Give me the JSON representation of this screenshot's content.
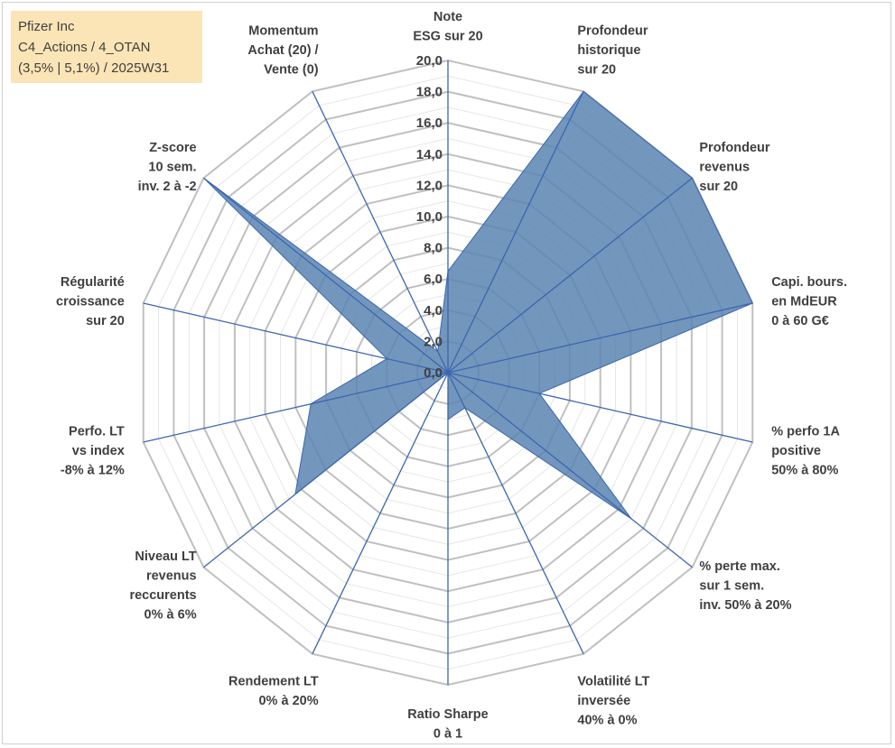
{
  "info": {
    "line1": "Pfizer Inc",
    "line2": "C4_Actions / 4_OTAN",
    "line3": "(3,5% | 5,1%) / 2025W31"
  },
  "chart_data": {
    "type": "radar",
    "title": "",
    "range": [
      0,
      20
    ],
    "tick_step": 2,
    "tick_labels": [
      "0,0",
      "2,0",
      "4,0",
      "6,0",
      "8,0",
      "10,0",
      "12,0",
      "14,0",
      "16,0",
      "18,0",
      "20,0"
    ],
    "colors": {
      "fill": "#5b84b1",
      "spoke": "#3b66b0",
      "grid": "#c0c0c0",
      "minor_grid": "#e6e6e6"
    },
    "axes": [
      {
        "label": [
          "Note",
          "ESG sur 20"
        ],
        "value": 6.5
      },
      {
        "label": [
          "Profondeur",
          "historique",
          "sur 20"
        ],
        "value": 20
      },
      {
        "label": [
          "Profondeur",
          "revenus",
          "sur 20"
        ],
        "value": 20
      },
      {
        "label": [
          "Capi. bours.",
          "en MdEUR",
          "0 à 60 G€"
        ],
        "value": 20
      },
      {
        "label": [
          "% perfo 1A",
          "positive",
          "50% à 80%"
        ],
        "value": 6
      },
      {
        "label": [
          "% perte max.",
          "sur 1 sem.",
          "inv. 50% à 20%"
        ],
        "value": 15
      },
      {
        "label": [
          "Volatilité LT",
          "inversée",
          "40% à 0%"
        ],
        "value": 2.5
      },
      {
        "label": [
          "Ratio Sharpe",
          "0 à 1"
        ],
        "value": 3
      },
      {
        "label": [
          "Rendement LT",
          "0% à 20%"
        ],
        "value": 0
      },
      {
        "label": [
          "Niveau LT",
          "revenus",
          "reccurents",
          "0% à 6%"
        ],
        "value": 12.5
      },
      {
        "label": [
          "Perfo. LT",
          "vs index",
          "-8% à 12%"
        ],
        "value": 9
      },
      {
        "label": [
          "Régularité",
          "croissance",
          "sur 20"
        ],
        "value": 4
      },
      {
        "label": [
          "Z-score",
          "10 sem.",
          "inv. 2 à -2"
        ],
        "value": 20
      },
      {
        "label": [
          "Momentum",
          "Achat (20) /",
          "Vente (0)"
        ],
        "value": 1.5
      }
    ]
  }
}
